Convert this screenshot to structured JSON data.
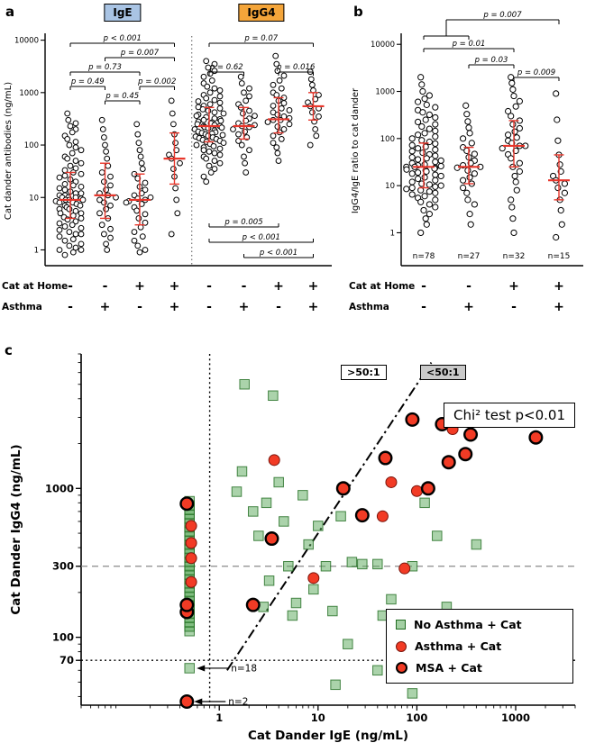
{
  "chart_data": {
    "colors": {
      "median_line": "#e8362b",
      "ige_badge_bg": "#a9c4e4",
      "igg4_badge_bg": "#f4a53a",
      "green_square_fill": "#58a758",
      "green_square_edge": "#1f6b1f",
      "red_circle_fill": "#f23b25",
      "red_circle_edge": "#7a150c",
      "msa_edge": "#000000"
    },
    "panel_a": {
      "label": "a",
      "type": "scatter",
      "ylabel": "Cat dander antibodies (ng/mL)",
      "ydomain": [
        0.5,
        12000
      ],
      "yticks": [
        1,
        10,
        100,
        1000,
        10000
      ],
      "badges": [
        {
          "text": "IgE"
        },
        {
          "text": "IgG4"
        }
      ],
      "x_rows": [
        {
          "label": "Cat at Home",
          "values": [
            "-",
            "-",
            "+",
            "+",
            "-",
            "-",
            "+",
            "+"
          ]
        },
        {
          "label": "Asthma",
          "values": [
            "-",
            "+",
            "-",
            "+",
            "-",
            "+",
            "-",
            "+"
          ]
        }
      ],
      "brackets": [
        {
          "text": "p < 0.001",
          "from": 0,
          "to": 3,
          "y": 48,
          "tick": "down"
        },
        {
          "text": "p = 0.007",
          "from": 1,
          "to": 3,
          "y": 64,
          "tick": "down"
        },
        {
          "text": "p = 0.73",
          "from": 0,
          "to": 2,
          "y": 80,
          "tick": "down"
        },
        {
          "text": "p = 0.49",
          "from": 0,
          "to": 1,
          "y": 96,
          "tick": "down"
        },
        {
          "text": "p = 0.002",
          "from": 2,
          "to": 3,
          "y": 96,
          "tick": "down"
        },
        {
          "text": "p = 0.45",
          "from": 1,
          "to": 2,
          "y": 112,
          "tick": "down"
        },
        {
          "text": "p = 0.07",
          "from": 4,
          "to": 7,
          "y": 48,
          "tick": "down"
        },
        {
          "text": "p = 0.62",
          "from": 4,
          "to": 5,
          "y": 80,
          "tick": "down"
        },
        {
          "text": "p = 0.016",
          "from": 6,
          "to": 7,
          "y": 80,
          "tick": "down"
        },
        {
          "text": "p = 0.005",
          "from": 4,
          "to": 6,
          "y": 252,
          "tick": "up"
        },
        {
          "text": "p < 0.001",
          "from": 4,
          "to": 7,
          "y": 269,
          "tick": "up"
        },
        {
          "text": "p < 0.001",
          "from": 5,
          "to": 7,
          "y": 286,
          "tick": "up"
        }
      ],
      "columns": [
        {
          "median": 9,
          "q1": 4,
          "q3": 30,
          "values": [
            0.8,
            0.9,
            1,
            1,
            1.1,
            1.2,
            1.3,
            1.5,
            1.6,
            1.8,
            2,
            2,
            2.2,
            2.4,
            2.6,
            2.8,
            3,
            3.2,
            3.5,
            3.8,
            4,
            4.2,
            4.5,
            5,
            5,
            5.5,
            6,
            6,
            6.5,
            7,
            7,
            7.5,
            8,
            8,
            8.5,
            9,
            9,
            9,
            9.5,
            10,
            10,
            10,
            11,
            11,
            12,
            12,
            13,
            14,
            15,
            16,
            17,
            18,
            20,
            22,
            24,
            26,
            28,
            30,
            33,
            36,
            40,
            45,
            50,
            55,
            60,
            70,
            80,
            90,
            100,
            115,
            130,
            150,
            175,
            200,
            230,
            260,
            300,
            400
          ]
        },
        {
          "median": 11,
          "q1": 4,
          "q3": 45,
          "values": [
            1,
            1.3,
            1.7,
            2,
            2.5,
            3,
            4,
            5,
            6,
            7,
            8,
            9,
            10,
            11,
            12,
            14,
            17,
            20,
            25,
            30,
            40,
            55,
            75,
            100,
            140,
            200,
            300
          ]
        },
        {
          "median": 9,
          "q1": 3,
          "q3": 28,
          "values": [
            0.9,
            1,
            1.2,
            1.5,
            1.8,
            2.2,
            2.7,
            3.3,
            4,
            4.8,
            5.6,
            6.5,
            7.5,
            8,
            8.5,
            9,
            9.5,
            10,
            11,
            12,
            14,
            16,
            19,
            23,
            28,
            35,
            45,
            60,
            80,
            110,
            160,
            250
          ]
        },
        {
          "median": 55,
          "q1": 18,
          "q3": 170,
          "values": [
            2,
            5,
            9,
            15,
            25,
            35,
            45,
            55,
            65,
            80,
            110,
            160,
            250,
            400,
            700
          ]
        },
        {
          "median": 230,
          "q1": 115,
          "q3": 520,
          "values": [
            20,
            25,
            30,
            35,
            40,
            45,
            50,
            55,
            60,
            65,
            70,
            75,
            80,
            85,
            90,
            95,
            100,
            105,
            110,
            115,
            120,
            125,
            130,
            135,
            140,
            145,
            150,
            155,
            160,
            165,
            170,
            175,
            180,
            190,
            200,
            210,
            215,
            220,
            230,
            230,
            240,
            250,
            260,
            270,
            280,
            290,
            300,
            310,
            320,
            340,
            360,
            380,
            400,
            420,
            450,
            480,
            500,
            530,
            560,
            600,
            640,
            680,
            720,
            780,
            850,
            900,
            1000,
            1100,
            1200,
            1300,
            1500,
            1700,
            2000,
            2300,
            2600,
            3000,
            3500,
            4000
          ]
        },
        {
          "median": 230,
          "q1": 130,
          "q3": 520,
          "values": [
            30,
            45,
            60,
            80,
            100,
            120,
            140,
            160,
            180,
            200,
            220,
            230,
            240,
            260,
            290,
            320,
            360,
            400,
            450,
            520,
            600,
            700,
            850,
            1000,
            1200,
            1500,
            2000
          ]
        },
        {
          "median": 310,
          "q1": 170,
          "q3": 800,
          "values": [
            50,
            70,
            90,
            110,
            130,
            150,
            175,
            200,
            225,
            250,
            275,
            300,
            300,
            325,
            350,
            380,
            420,
            460,
            500,
            560,
            630,
            700,
            800,
            900,
            1000,
            1200,
            1400,
            1700,
            2100,
            2600,
            3500,
            5000
          ]
        },
        {
          "median": 550,
          "q1": 300,
          "q3": 1000,
          "values": [
            100,
            150,
            200,
            280,
            350,
            420,
            500,
            550,
            650,
            750,
            900,
            1100,
            1400,
            1800,
            2500
          ]
        }
      ]
    },
    "panel_b": {
      "label": "b",
      "type": "scatter",
      "ylabel": "IgG4/IgE ratio to cat dander",
      "ydomain": [
        0.2,
        15000
      ],
      "yticks": [
        1,
        10,
        100,
        1000,
        10000
      ],
      "n_labels": [
        "n=78",
        "n=27",
        "n=32",
        "n=15"
      ],
      "x_rows": [
        {
          "label": "Cat at Home",
          "values": [
            "-",
            "-",
            "+",
            "+"
          ]
        },
        {
          "label": "Asthma",
          "values": [
            "-",
            "+",
            "-",
            "+"
          ]
        }
      ],
      "brackets": [
        {
          "type": "grouped",
          "text": "p = 0.007",
          "group": [
            0,
            1
          ],
          "to": 3,
          "y": 22,
          "group_y": 40
        },
        {
          "text": "p = 0.01",
          "from": 0,
          "to": 2,
          "y": 54,
          "tick": "down"
        },
        {
          "text": "p = 0.03",
          "from": 1,
          "to": 2,
          "y": 72,
          "tick": "down"
        },
        {
          "text": "p = 0.009",
          "from": 2,
          "to": 3,
          "y": 86,
          "tick": "down"
        }
      ],
      "columns": [
        {
          "median": 25,
          "q1": 9,
          "q3": 80,
          "values": [
            1,
            1.5,
            2,
            2.5,
            3,
            3.5,
            4,
            4.5,
            5,
            5.5,
            6,
            6.5,
            7,
            7.5,
            8,
            8.5,
            9,
            9.5,
            10,
            10.5,
            11,
            12,
            13,
            14,
            15,
            16,
            17,
            18,
            19,
            20,
            21,
            22,
            23,
            24,
            25,
            25,
            26,
            27,
            28,
            30,
            32,
            34,
            36,
            38,
            40,
            43,
            46,
            50,
            54,
            58,
            62,
            67,
            72,
            78,
            85,
            92,
            100,
            110,
            120,
            130,
            145,
            160,
            180,
            200,
            225,
            250,
            280,
            320,
            360,
            400,
            460,
            520,
            600,
            700,
            820,
            1000,
            1400,
            2000
          ]
        },
        {
          "median": 25,
          "q1": 11,
          "q3": 65,
          "values": [
            1.5,
            2.5,
            4,
            5,
            7,
            9,
            11,
            13,
            15,
            18,
            21,
            24,
            25,
            27,
            30,
            34,
            40,
            47,
            55,
            65,
            80,
            100,
            130,
            170,
            230,
            330,
            500
          ]
        },
        {
          "median": 70,
          "q1": 25,
          "q3": 240,
          "values": [
            1,
            2,
            3.5,
            5,
            8,
            12,
            16,
            20,
            25,
            30,
            38,
            46,
            55,
            62,
            70,
            70,
            80,
            90,
            105,
            120,
            140,
            165,
            200,
            240,
            300,
            380,
            480,
            620,
            800,
            1100,
            1500,
            2000
          ]
        },
        {
          "median": 13,
          "q1": 5,
          "q3": 45,
          "values": [
            0.8,
            1.5,
            3,
            5,
            7,
            9,
            11,
            13,
            16,
            20,
            28,
            45,
            90,
            250,
            900
          ]
        }
      ]
    },
    "panel_c": {
      "label": "c",
      "type": "scatter",
      "xlabel": "Cat Dander IgE (ng/mL)",
      "ylabel": "Cat Dander IgG4 (ng/mL)",
      "xdomain": [
        0.04,
        4000
      ],
      "ydomain": [
        35,
        8000
      ],
      "xticks": [
        1,
        10,
        100,
        1000
      ],
      "yticks": [
        70,
        100,
        300,
        1000
      ],
      "ref_lines": {
        "vline_dotted_x": 0.8,
        "hline_dotted_y": 70,
        "hline_dashed_y": 300,
        "ratio_line": {
          "ratio": 50,
          "from_y": 60,
          "to_y": 7000
        }
      },
      "region_labels": [
        ">50:1",
        "<50:1"
      ],
      "stat_box": "Chi² test p<0.01",
      "legend": [
        {
          "label": "No Asthma + Cat",
          "marker": "square"
        },
        {
          "label": "Asthma + Cat",
          "marker": "circle"
        },
        {
          "label": "MSA + Cat",
          "marker": "msa"
        }
      ],
      "annotations": [
        {
          "text": "n=18",
          "x": 0.5,
          "y": 62
        },
        {
          "text": "n=2",
          "x": 0.47,
          "y": 37
        }
      ],
      "series": [
        {
          "name": "No Asthma + Cat",
          "marker": "square",
          "stack_x": 0.5,
          "stack_values": [
            110,
            118,
            126,
            135,
            144,
            154,
            165,
            176,
            188,
            201,
            215,
            230,
            246,
            263,
            281,
            300,
            321,
            343,
            367,
            392,
            419,
            448,
            479,
            512,
            548,
            586,
            627,
            670,
            717,
            767,
            820
          ],
          "points": [
            [
              0.5,
              62
            ],
            [
              1.5,
              950
            ],
            [
              1.7,
              1300
            ],
            [
              1.8,
              5000
            ],
            [
              2.2,
              700
            ],
            [
              2.5,
              480
            ],
            [
              2.8,
              160
            ],
            [
              3,
              800
            ],
            [
              3.2,
              240
            ],
            [
              3.5,
              4200
            ],
            [
              4,
              1100
            ],
            [
              4.5,
              600
            ],
            [
              5,
              300
            ],
            [
              5.5,
              140
            ],
            [
              6,
              170
            ],
            [
              7,
              900
            ],
            [
              8,
              420
            ],
            [
              9,
              210
            ],
            [
              10,
              560
            ],
            [
              12,
              300
            ],
            [
              14,
              150
            ],
            [
              15,
              48
            ],
            [
              17,
              650
            ],
            [
              20,
              90
            ],
            [
              22,
              320
            ],
            [
              28,
              310
            ],
            [
              40,
              60
            ],
            [
              40,
              310
            ],
            [
              45,
              140
            ],
            [
              55,
              180
            ],
            [
              90,
              42
            ],
            [
              90,
              300
            ],
            [
              120,
              800
            ],
            [
              160,
              480
            ],
            [
              200,
              160
            ],
            [
              400,
              420
            ]
          ]
        },
        {
          "name": "Asthma + Cat",
          "marker": "circle",
          "stack_x": 0.52,
          "stack_values": [
            235,
            340,
            430,
            560
          ],
          "points": [
            [
              3.6,
              1550
            ],
            [
              9,
              250
            ],
            [
              45,
              650
            ],
            [
              55,
              1100
            ],
            [
              75,
              290
            ],
            [
              100,
              960
            ],
            [
              230,
              2500
            ]
          ]
        },
        {
          "name": "MSA + Cat",
          "marker": "msa",
          "stack_x": 0.47,
          "stack_values": [
            37,
            148,
            165,
            790
          ],
          "points": [
            [
              2.2,
              165
            ],
            [
              3.4,
              460
            ],
            [
              18,
              1000
            ],
            [
              28,
              660
            ],
            [
              48,
              1600
            ],
            [
              90,
              2900
            ],
            [
              130,
              1000
            ],
            [
              180,
              2700
            ],
            [
              210,
              1500
            ],
            [
              310,
              1700
            ],
            [
              350,
              2300
            ],
            [
              1600,
              2200
            ]
          ]
        }
      ]
    }
  }
}
